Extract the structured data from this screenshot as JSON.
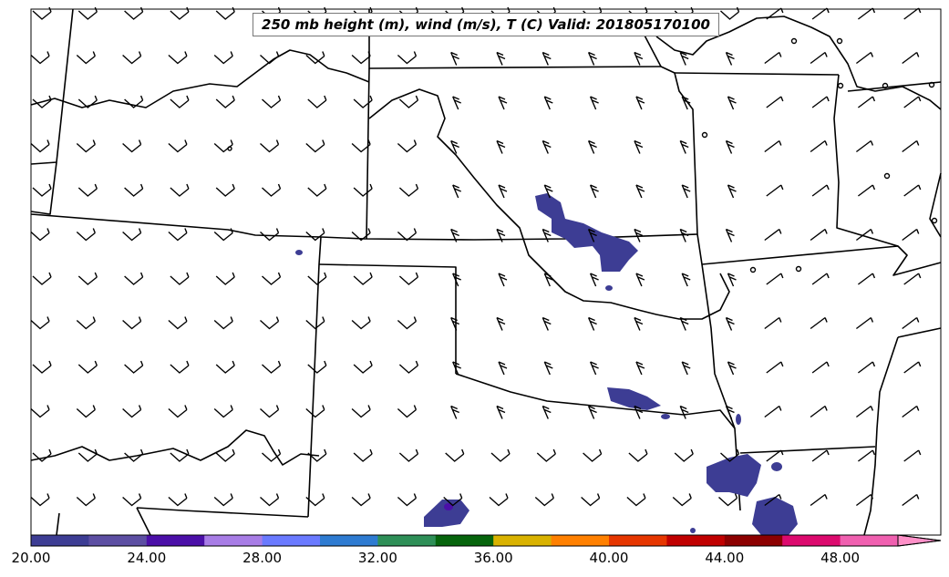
{
  "title": "250 mb height (m), wind (m/s), T (C) Valid: 201805170100",
  "colorbar": {
    "tick_labels": [
      "20.00",
      "24.00",
      "28.00",
      "32.00",
      "36.00",
      "40.00",
      "44.00",
      "48.00"
    ],
    "colors": [
      "#3d3d94",
      "#5d4fa3",
      "#4b0fa8",
      "#a87de6",
      "#6a7aff",
      "#2e7bd1",
      "#2e8f57",
      "#06640c",
      "#d9b200",
      "#ff8000",
      "#e63600",
      "#c00000",
      "#8c0000",
      "#dc0a6e",
      "#f060b0",
      "#ff90c8"
    ]
  },
  "colors": {
    "border": "#000000",
    "shading": "#3d3d94"
  }
}
